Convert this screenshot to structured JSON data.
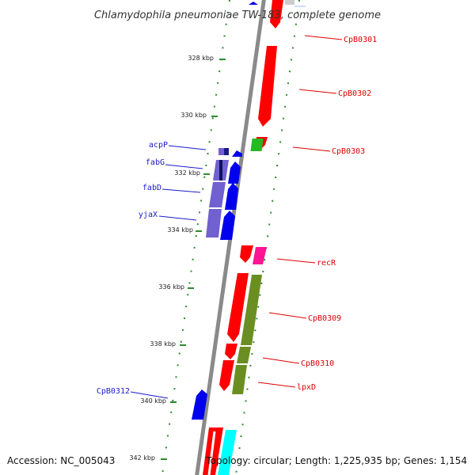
{
  "title": "Chlamydophila pneumoniae TW-183, complete genome",
  "accession": "Accession: NC_005043",
  "topology": "Topology: circular; Length: 1,225,935 bp; Genes: 1,154",
  "ticks": [
    "328 kbp",
    "330 kbp",
    "332 kbp",
    "334 kbp",
    "336 kbp",
    "338 kbp",
    "340 kbp",
    "342 kbp"
  ],
  "colors": {
    "backbone": "#8a8a8a",
    "tick_dots": "#2e8b2e",
    "forward_label": "#1a1acc",
    "reverse_label": "#dd0000",
    "red_gene": "#ff0000",
    "blue_gene": "#0000ee",
    "purple_gene": "#7060d0",
    "green_gene": "#6b8e23",
    "bright_green_gene": "#22bb22",
    "magenta_gene": "#ff1493",
    "cyan_gene": "#00ffff"
  },
  "left_labels": [
    "acpP",
    "fabG",
    "fabD",
    "yjaX",
    "CpB0312"
  ],
  "right_labels": [
    "CpB0301",
    "CpB0302",
    "CpB0303",
    "recR",
    "CpB0309",
    "CpB0310",
    "lpxD"
  ]
}
